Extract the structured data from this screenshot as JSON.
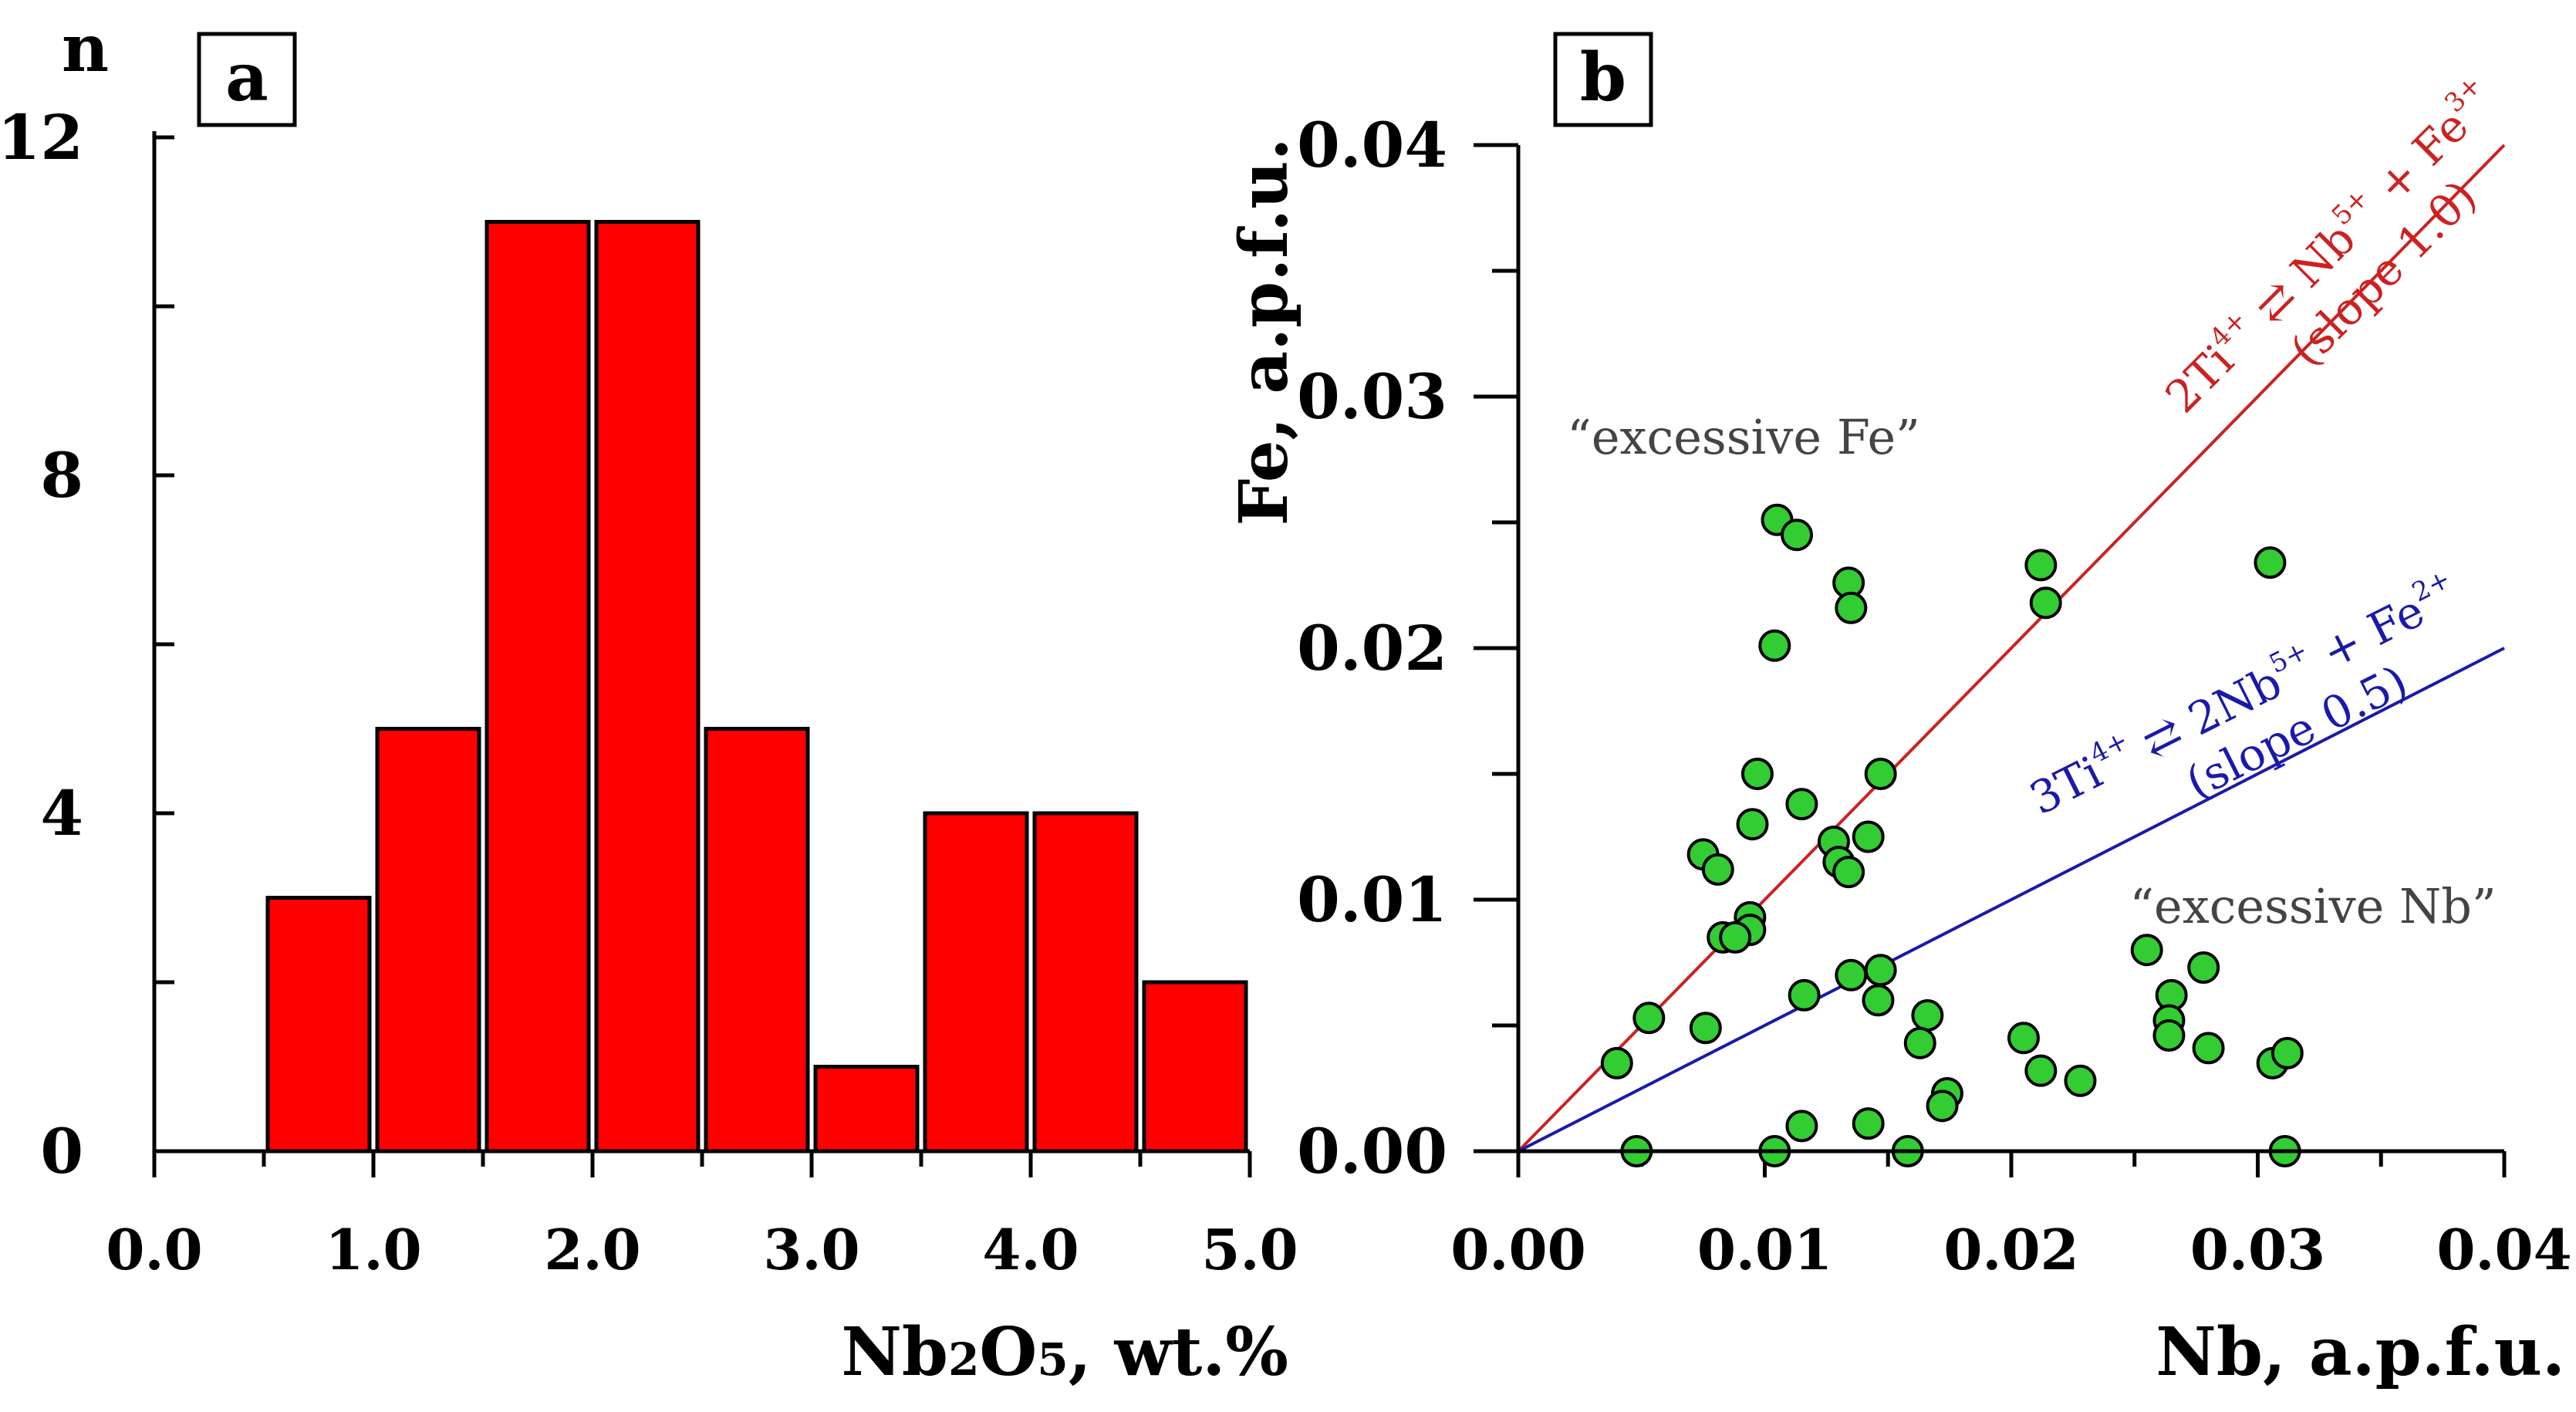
{
  "chart_data": [
    {
      "panel": "a",
      "type": "bar",
      "ylabel": "n",
      "xlabel_parts": [
        "Nb",
        "2",
        "O",
        "5",
        ", wt.%"
      ],
      "xlim": [
        0,
        5
      ],
      "ylim": [
        0,
        12
      ],
      "bin_width": 0.5,
      "bins": [
        {
          "start": 0.0,
          "count": 0
        },
        {
          "start": 0.5,
          "count": 3
        },
        {
          "start": 1.0,
          "count": 5
        },
        {
          "start": 1.5,
          "count": 11
        },
        {
          "start": 2.0,
          "count": 11
        },
        {
          "start": 2.5,
          "count": 5
        },
        {
          "start": 3.0,
          "count": 1
        },
        {
          "start": 3.5,
          "count": 4
        },
        {
          "start": 4.0,
          "count": 4
        },
        {
          "start": 4.5,
          "count": 2
        }
      ],
      "x_ticks": [
        "0.0",
        "1.0",
        "2.0",
        "3.0",
        "4.0",
        "5.0"
      ],
      "y_ticks": [
        "0",
        "4",
        "8",
        "12"
      ],
      "bar_color": "#ff0000"
    },
    {
      "panel": "b",
      "type": "scatter",
      "xlabel": "Nb, a.p.f.u.",
      "ylabel": "Fe, a.p.f.u.",
      "xlim": [
        0,
        0.04
      ],
      "ylim": [
        0,
        0.04
      ],
      "x_ticks": [
        "0.00",
        "0.01",
        "0.02",
        "0.03",
        "0.04"
      ],
      "y_ticks": [
        "0.00",
        "0.01",
        "0.02",
        "0.03",
        "0.04"
      ],
      "point_color": "#33cc33",
      "points": [
        [
          0.0105,
          0.0251
        ],
        [
          0.0113,
          0.0245
        ],
        [
          0.0134,
          0.0226
        ],
        [
          0.0135,
          0.0216
        ],
        [
          0.0104,
          0.0201
        ],
        [
          0.0212,
          0.0233
        ],
        [
          0.0214,
          0.0218
        ],
        [
          0.0305,
          0.0234
        ],
        [
          0.0097,
          0.015
        ],
        [
          0.0147,
          0.015
        ],
        [
          0.0115,
          0.0138
        ],
        [
          0.0095,
          0.013
        ],
        [
          0.0128,
          0.0123
        ],
        [
          0.0142,
          0.0125
        ],
        [
          0.013,
          0.0115
        ],
        [
          0.0134,
          0.0111
        ],
        [
          0.0075,
          0.0118
        ],
        [
          0.0081,
          0.0112
        ],
        [
          0.0094,
          0.0093
        ],
        [
          0.0094,
          0.0088
        ],
        [
          0.0083,
          0.0085
        ],
        [
          0.0088,
          0.0085
        ],
        [
          0.0255,
          0.008
        ],
        [
          0.0278,
          0.0073
        ],
        [
          0.0135,
          0.007
        ],
        [
          0.0147,
          0.0072
        ],
        [
          0.0146,
          0.006
        ],
        [
          0.0116,
          0.0062
        ],
        [
          0.0053,
          0.0053
        ],
        [
          0.0076,
          0.0049
        ],
        [
          0.0166,
          0.0054
        ],
        [
          0.0163,
          0.0043
        ],
        [
          0.0265,
          0.0062
        ],
        [
          0.0264,
          0.0052
        ],
        [
          0.0264,
          0.0046
        ],
        [
          0.028,
          0.0041
        ],
        [
          0.0205,
          0.0045
        ],
        [
          0.0212,
          0.0032
        ],
        [
          0.0228,
          0.0028
        ],
        [
          0.0174,
          0.0023
        ],
        [
          0.0172,
          0.0018
        ],
        [
          0.004,
          0.0035
        ],
        [
          0.0306,
          0.0035
        ],
        [
          0.0312,
          0.0039
        ],
        [
          0.0048,
          0.0
        ],
        [
          0.0104,
          0.0
        ],
        [
          0.0115,
          0.001
        ],
        [
          0.0142,
          0.0011
        ],
        [
          0.0158,
          0.0
        ],
        [
          0.0311,
          0.0
        ]
      ],
      "lines": [
        {
          "slope": 1.0,
          "color": "#cc2222",
          "label_parts": [
            "2Ti",
            "4+",
            " ⇄ Nb",
            "5+",
            " + Fe",
            "3+"
          ],
          "slope_label": "(slope 1.0)"
        },
        {
          "slope": 0.5,
          "color": "#1a1aaa",
          "label_parts": [
            "3Ti",
            "4+",
            " ⇄ 2Nb",
            "5+",
            " + Fe",
            "2+"
          ],
          "slope_label": "(slope 0.5)"
        }
      ],
      "annotations": [
        "“excessive Fe”",
        "“excessive Nb”"
      ],
      "annotation_color": "#444444"
    }
  ]
}
